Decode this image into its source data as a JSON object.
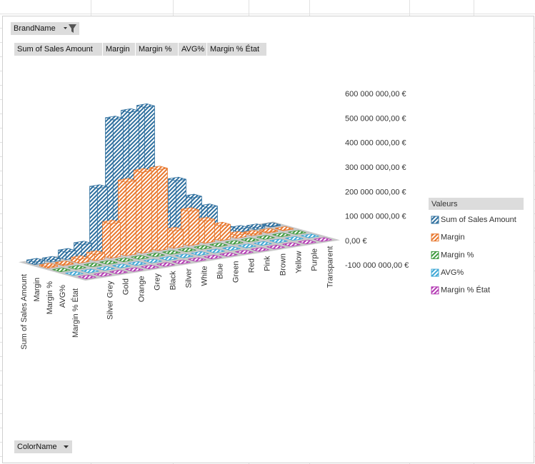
{
  "pivot": {
    "report_filter": "BrandName",
    "value_fields": [
      "Sum of Sales Amount",
      "Margin",
      "Margin %",
      "AVG%",
      "Margin % État"
    ],
    "axis_field": "ColorName"
  },
  "chart_data": {
    "type": "bar3d",
    "categories": [
      null,
      "Silver Grey",
      "Gold",
      "Orange",
      "Grey",
      "Black",
      "Silver",
      "White",
      "Blue",
      "Green",
      "Red",
      "Pink",
      "Brown",
      "Yellow",
      "Purple",
      "Transparent"
    ],
    "series": [
      {
        "name": "Sum of Sales Amount",
        "color": "#2e6f9e",
        "values": [
          10000000,
          8000000,
          30000000,
          50000000,
          270000000,
          540000000,
          560000000,
          570000000,
          130000000,
          250000000,
          170000000,
          120000000,
          25000000,
          12000000,
          8000000,
          3000000
        ]
      },
      {
        "name": "Margin",
        "color": "#e8782f",
        "values": [
          5000000,
          4000000,
          15000000,
          25000000,
          140000000,
          300000000,
          330000000,
          330000000,
          70000000,
          140000000,
          90000000,
          60000000,
          12000000,
          6000000,
          4000000,
          1500000
        ]
      },
      {
        "name": "Margin %",
        "color": "#3f9a3f",
        "values": [
          0.52,
          0.5,
          0.51,
          0.53,
          0.52,
          0.55,
          0.58,
          0.57,
          0.54,
          0.56,
          0.53,
          0.5,
          0.48,
          0.5,
          0.5,
          0.5
        ]
      },
      {
        "name": "AVG%",
        "color": "#3fa8d6",
        "values": [
          0.5,
          0.5,
          0.5,
          0.5,
          0.5,
          0.5,
          0.5,
          0.5,
          0.5,
          0.5,
          0.5,
          0.5,
          0.5,
          0.5,
          0.5,
          0.5
        ]
      },
      {
        "name": "Margin % État",
        "color": "#b43cb4",
        "values": [
          0.4,
          0.4,
          0.4,
          0.4,
          0.4,
          0.4,
          0.4,
          0.4,
          0.4,
          0.4,
          0.4,
          0.4,
          0.4,
          0.4,
          0.4,
          0.4
        ]
      }
    ],
    "ylim": [
      -100000000,
      600000000
    ],
    "yticks": [
      {
        "value": -100000000,
        "label": "-100 000 000,00 €"
      },
      {
        "value": 0,
        "label": "0,00 €"
      },
      {
        "value": 100000000,
        "label": "100 000 000,00 €"
      },
      {
        "value": 200000000,
        "label": "200 000 000,00 €"
      },
      {
        "value": 300000000,
        "label": "300 000 000,00 €"
      },
      {
        "value": 400000000,
        "label": "400 000 000,00 €"
      },
      {
        "value": 500000000,
        "label": "500 000 000,00 €"
      },
      {
        "value": 600000000,
        "label": "600 000 000,00 €"
      }
    ],
    "legend_title": "Valeurs",
    "legend": "right",
    "grid": false
  }
}
